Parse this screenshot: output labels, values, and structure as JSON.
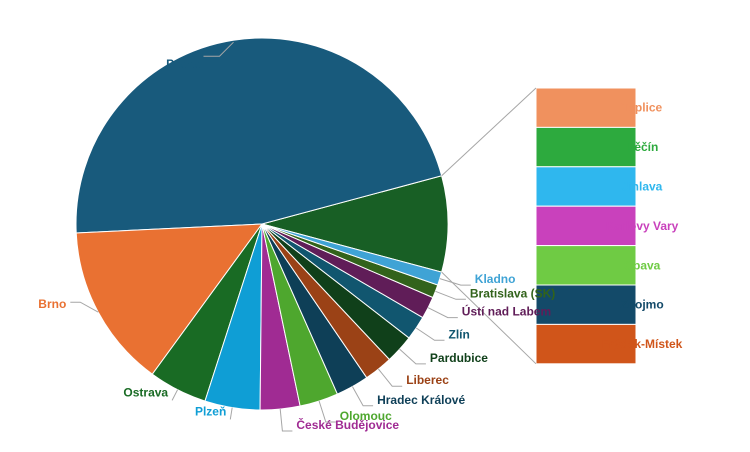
{
  "chart_data": {
    "type": "bar-of-pie",
    "title": "",
    "pie": [
      {
        "label": "Praha",
        "value": 48.6,
        "color": "#185A7C"
      },
      {
        "label": "Brno",
        "value": 14.8,
        "color": "#E97132"
      },
      {
        "label": "Ostrava",
        "value": 5.3,
        "color": "#196B24"
      },
      {
        "label": "Plzeň",
        "value": 5.0,
        "color": "#0F9ED5"
      },
      {
        "label": "České Budějovice",
        "value": 3.6,
        "color": "#A02B93"
      },
      {
        "label": "Olomouc",
        "value": 3.5,
        "color": "#4EA72E"
      },
      {
        "label": "Hradec Králové",
        "value": 3.0,
        "color": "#0E3F57"
      },
      {
        "label": "Liberec",
        "value": 2.6,
        "color": "#9B4216"
      },
      {
        "label": "Pardubice",
        "value": 2.6,
        "color": "#10401A"
      },
      {
        "label": "Zlín",
        "value": 2.2,
        "color": "#11566F"
      },
      {
        "label": "Ústí nad Labem",
        "value": 2.0,
        "color": "#601D58"
      },
      {
        "label": "Bratislava (SK)",
        "value": 1.2,
        "color": "#32631B"
      },
      {
        "label": "Kladno",
        "value": 1.2,
        "color": "#3FA3D5"
      }
    ],
    "other_slice": {
      "label": "",
      "value": 8.7,
      "color": "#185F25"
    },
    "bar": [
      {
        "label": "Teplice",
        "value": 1.24,
        "color": "#F0915E"
      },
      {
        "label": "Děčín",
        "value": 1.24,
        "color": "#2DAA3E"
      },
      {
        "label": "Jihlava",
        "value": 1.24,
        "color": "#2FB7EE"
      },
      {
        "label": "Karlovy Vary",
        "value": 1.24,
        "color": "#C941BC"
      },
      {
        "label": "Opava",
        "value": 1.24,
        "color": "#6FCB44"
      },
      {
        "label": "Znojmo",
        "value": 1.24,
        "color": "#134A69"
      },
      {
        "label": "Frýdek-Místek",
        "value": 1.24,
        "color": "#D0551A"
      }
    ],
    "legend": "none"
  }
}
